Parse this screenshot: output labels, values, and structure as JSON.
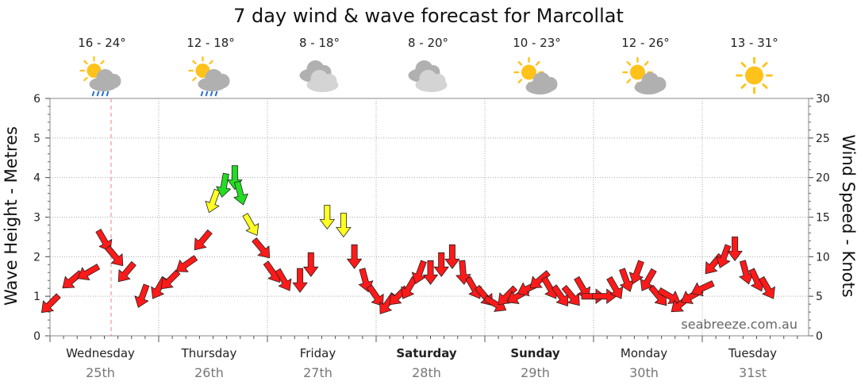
{
  "chart_data": {
    "type": "line",
    "title": "7 day wind & wave forecast for Marcollat",
    "ylabel_left": "Wave Height - Metres",
    "ylabel_right": "Wind Speed - Knots",
    "y_left_range": [
      0,
      6
    ],
    "y_left_ticks": [
      "0",
      "1",
      "2",
      "3",
      "4",
      "5",
      "6"
    ],
    "y_right_range": [
      0,
      30
    ],
    "y_right_ticks": [
      "0",
      "5",
      "10",
      "15",
      "20",
      "25",
      "30"
    ],
    "grid": true,
    "watermark": "seabreeze.com.au",
    "days": [
      {
        "name": "Wednesday",
        "date": "25th",
        "bold": false,
        "temp": "16 - 24°",
        "icon": "sun-cloud-rain-icon"
      },
      {
        "name": "Thursday",
        "date": "26th",
        "bold": false,
        "temp": "12 - 18°",
        "icon": "sun-cloud-rain-icon"
      },
      {
        "name": "Friday",
        "date": "27th",
        "bold": false,
        "temp": "8 - 18°",
        "icon": "cloud-icon"
      },
      {
        "name": "Saturday",
        "date": "28th",
        "bold": true,
        "temp": "8 - 20°",
        "icon": "cloud-icon"
      },
      {
        "name": "Sunday",
        "date": "29th",
        "bold": true,
        "temp": "10 - 23°",
        "icon": "sun-cloud-icon"
      },
      {
        "name": "Monday",
        "date": "30th",
        "bold": false,
        "temp": "12 - 26°",
        "icon": "sun-cloud-icon"
      },
      {
        "name": "Tuesday",
        "date": "31st",
        "bold": false,
        "temp": "13 - 31°",
        "icon": "sun-icon"
      }
    ],
    "colors": {
      "low": "#ff1a1a",
      "mid": "#ffff22",
      "high": "#22dd22"
    },
    "wind_series": {
      "name": "Wind",
      "unit": "knots",
      "x_day_fraction": [
        0.0,
        0.2,
        0.35,
        0.5,
        0.6,
        0.7,
        0.85,
        1.0,
        1.1,
        1.25,
        1.4,
        1.5,
        1.6,
        1.7,
        1.75,
        1.85,
        1.95,
        2.05,
        2.15,
        2.3,
        2.4,
        2.55,
        2.7,
        2.8,
        2.9,
        3.0,
        3.1,
        3.2,
        3.3,
        3.4,
        3.5,
        3.6,
        3.7,
        3.8,
        3.9,
        4.0,
        4.1,
        4.2,
        4.3,
        4.4,
        4.5,
        4.6,
        4.7,
        4.8,
        4.9,
        5.0,
        5.1,
        5.2,
        5.3,
        5.4,
        5.5,
        5.6,
        5.7,
        5.8,
        5.9,
        6.0,
        6.1,
        6.2,
        6.3,
        6.4,
        6.5,
        6.6
      ],
      "knots": [
        4,
        7,
        8,
        12,
        10,
        8,
        5,
        6,
        7,
        9,
        12,
        17,
        19,
        20,
        18,
        14,
        11,
        8,
        7,
        7,
        9,
        15,
        14,
        10,
        7,
        5,
        4,
        5,
        6,
        8,
        8,
        9,
        10,
        8,
        6,
        5,
        4,
        5,
        5,
        6,
        7,
        6,
        5,
        5,
        6,
        5,
        5,
        6,
        7,
        8,
        7,
        5,
        5,
        4,
        5,
        6,
        9,
        10,
        11,
        8,
        7,
        6
      ],
      "direction_deg": [
        225,
        230,
        240,
        150,
        140,
        220,
        200,
        210,
        225,
        235,
        220,
        200,
        190,
        180,
        165,
        150,
        140,
        145,
        150,
        180,
        180,
        180,
        180,
        180,
        165,
        145,
        215,
        225,
        210,
        200,
        180,
        180,
        180,
        175,
        150,
        140,
        120,
        225,
        240,
        245,
        230,
        150,
        145,
        140,
        150,
        90,
        90,
        150,
        160,
        200,
        210,
        140,
        120,
        230,
        240,
        245,
        220,
        200,
        180,
        165,
        155,
        150
      ]
    },
    "wave_series": {
      "name": "Wave",
      "unit": "metres",
      "x_day_fraction": [
        0.0,
        1.0,
        2.0,
        3.0,
        4.0,
        5.0,
        6.0,
        6.6
      ],
      "metres": [
        0,
        0,
        0,
        0,
        0,
        0,
        0,
        0
      ]
    }
  }
}
